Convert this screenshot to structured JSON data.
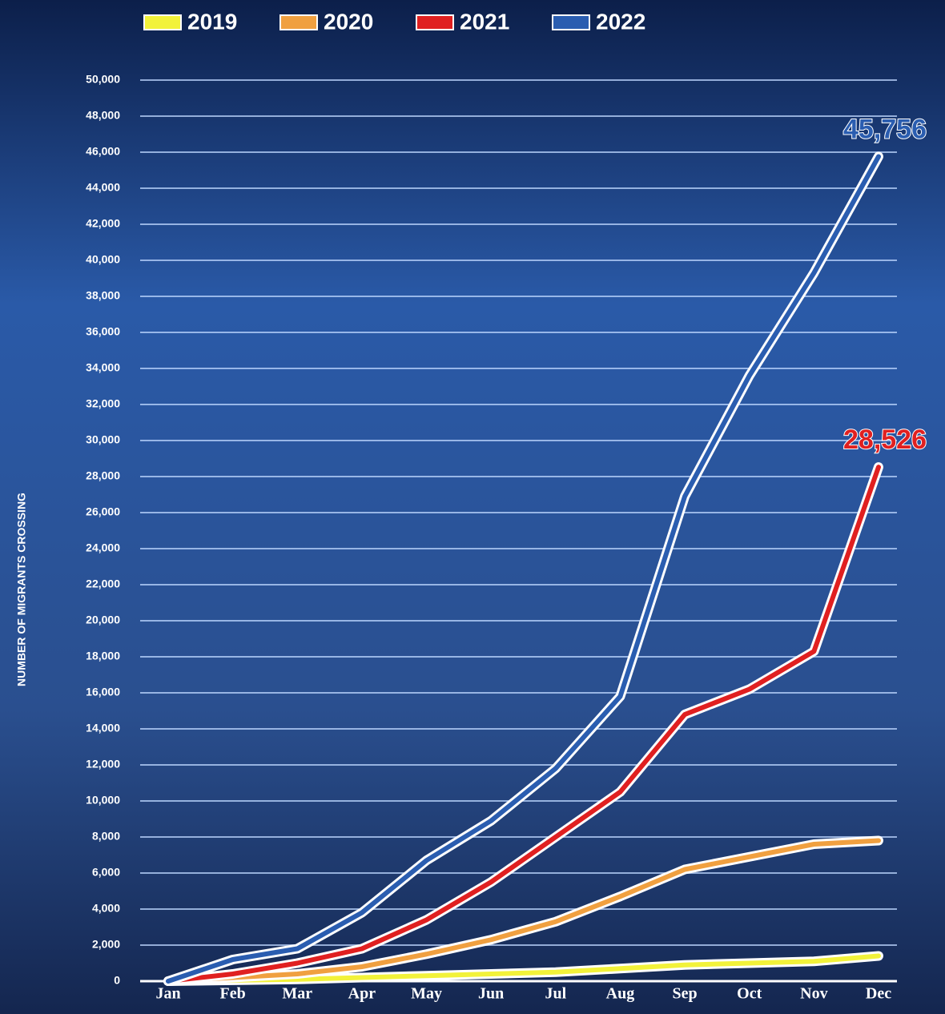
{
  "chart_data": {
    "type": "line",
    "y_axis_label": "NUMBER OF MIGRANTS CROSSING",
    "categories": [
      "Jan",
      "Feb",
      "Mar",
      "Apr",
      "May",
      "Jun",
      "Jul",
      "Aug",
      "Sep",
      "Oct",
      "Nov",
      "Dec"
    ],
    "series": [
      {
        "name": "2019",
        "color": "#f2f23a",
        "values": [
          0,
          50,
          100,
          200,
          300,
          400,
          500,
          700,
          900,
          1000,
          1100,
          1400
        ]
      },
      {
        "name": "2020",
        "color": "#f0a040",
        "values": [
          0,
          200,
          400,
          800,
          1500,
          2300,
          3300,
          4700,
          6200,
          6900,
          7600,
          7800
        ]
      },
      {
        "name": "2021",
        "color": "#e02020",
        "values": [
          0,
          400,
          1000,
          1800,
          3400,
          5500,
          8000,
          10500,
          14800,
          16200,
          18300,
          28526
        ],
        "value_labels": [
          null,
          null,
          null,
          null,
          null,
          null,
          null,
          null,
          null,
          null,
          null,
          "28,526"
        ]
      },
      {
        "name": "2022",
        "color": "#2a5db0",
        "values": [
          0,
          1200,
          1800,
          3800,
          6700,
          8900,
          11800,
          15800,
          26900,
          33600,
          39300,
          45756
        ],
        "value_labels": [
          null,
          null,
          null,
          null,
          null,
          null,
          null,
          null,
          null,
          null,
          null,
          "45,756"
        ]
      }
    ],
    "ylim": [
      0,
      50000
    ],
    "yticks": [
      0,
      {
        "value": 2000,
        "label": "2,000"
      },
      {
        "value": 4000,
        "label": "4,000"
      },
      {
        "value": 6000,
        "label": "6,000"
      },
      {
        "value": 8000,
        "label": "8,000"
      },
      {
        "value": 10000,
        "label": "10,000"
      },
      {
        "value": 12000,
        "label": "12,000"
      },
      {
        "value": 14000,
        "label": "14,000"
      },
      {
        "value": 16000,
        "label": "16,000"
      },
      {
        "value": 18000,
        "label": "18,000"
      },
      {
        "value": 20000,
        "label": "20,000"
      },
      {
        "value": 22000,
        "label": "22,000"
      },
      {
        "value": 24000,
        "label": "24,000"
      },
      {
        "value": 26000,
        "label": "26,000"
      },
      {
        "value": 28000,
        "label": "28,000"
      },
      {
        "value": 30000,
        "label": "30,000"
      },
      {
        "value": 32000,
        "label": "32,000"
      },
      {
        "value": 34000,
        "label": "34,000"
      },
      {
        "value": 36000,
        "label": "36,000"
      },
      {
        "value": 38000,
        "label": "38,000"
      },
      {
        "value": 40000,
        "label": "40,000"
      },
      {
        "value": 42000,
        "label": "42,000"
      },
      {
        "value": 44000,
        "label": "44,000"
      },
      {
        "value": 46000,
        "label": "46,000"
      },
      {
        "value": 48000,
        "label": "48,000"
      },
      {
        "value": 50000,
        "label": "50,000"
      }
    ],
    "grid": true
  }
}
